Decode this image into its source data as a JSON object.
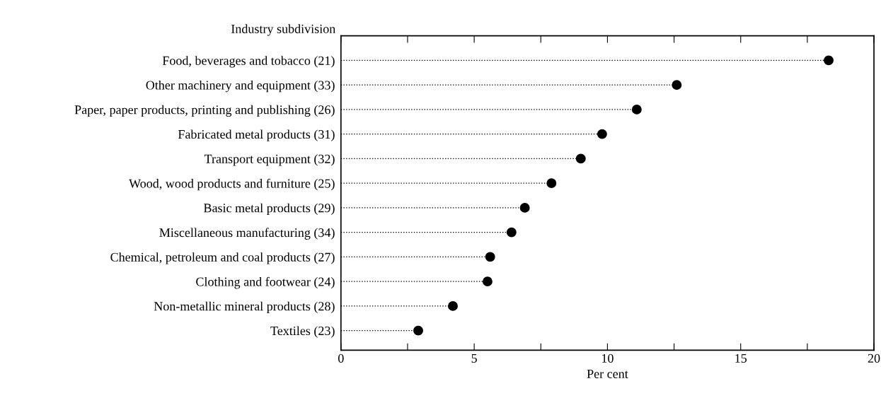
{
  "chart_data": {
    "type": "lollipop",
    "orientation": "horizontal",
    "ylabel": "Industry subdivision",
    "xlabel": "Per cent",
    "categories": [
      "Food, beverages and tobacco (21)",
      "Other machinery and equipment (33)",
      "Paper, paper products, printing and publishing (26)",
      "Fabricated metal products (31)",
      "Transport equipment (32)",
      "Wood, wood products and furniture (25)",
      "Basic metal products (29)",
      "Miscellaneous manufacturing (34)",
      "Chemical, petroleum and coal products (27)",
      "Clothing and footwear (24)",
      "Non-metallic mineral products (28)",
      "Textiles (23)"
    ],
    "values": [
      18.3,
      12.6,
      11.1,
      9.8,
      9.0,
      7.9,
      6.9,
      6.4,
      5.6,
      5.5,
      4.2,
      2.9
    ],
    "color": "#000000",
    "marker": "circle",
    "line_style": "dotted",
    "xlim": [
      0,
      20
    ],
    "xticks": [
      0,
      {
        "value": 2.5,
        "label": null
      },
      5,
      {
        "value": 7.5,
        "label": null
      },
      10,
      {
        "value": 12.5,
        "label": null
      },
      15,
      {
        "value": 17.5,
        "label": null
      },
      20
    ]
  }
}
